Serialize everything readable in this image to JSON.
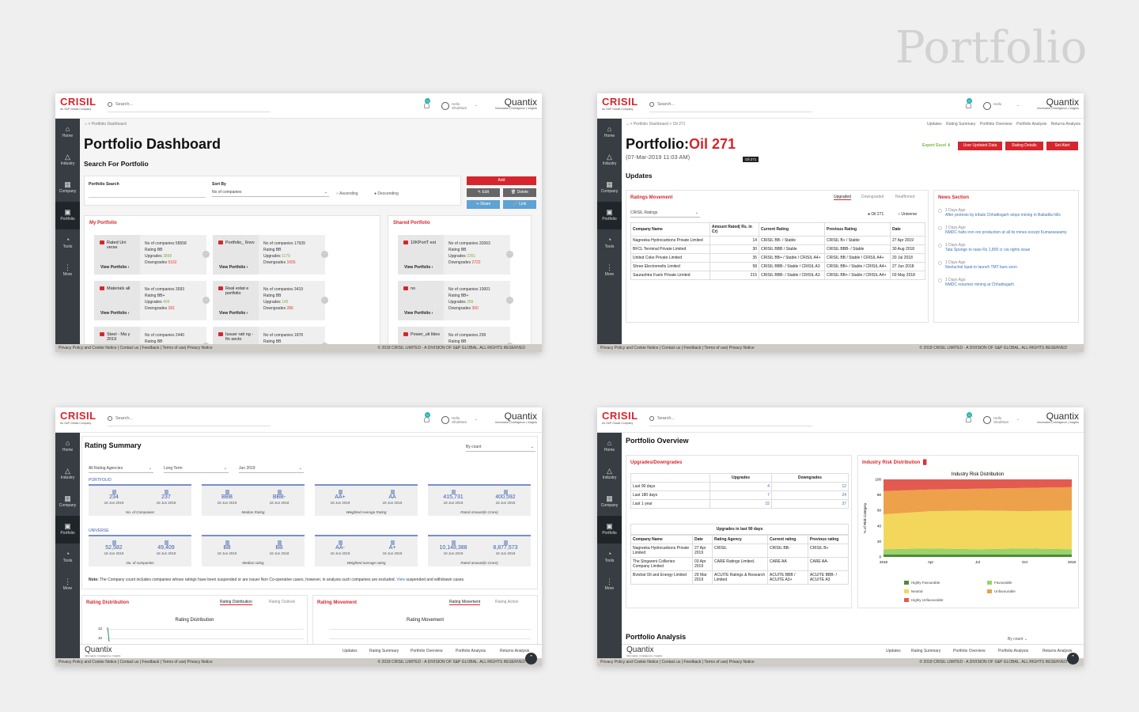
{
  "page_title": "Portfolio",
  "common": {
    "logo": "CRISIL",
    "logo_sub": "An S&P Global Company",
    "search_placeholder": "Search...",
    "notif_count": "0",
    "hello": "Hello",
    "user": "Shubham",
    "quantix": "Quantix",
    "quantix_sub": "Information | Intelligence | Insights",
    "sidebar": [
      "Home",
      "Industry",
      "Company",
      "Portfolio",
      "Tools",
      "More"
    ],
    "footer_left": "Privacy Policy and Cookie Notice | Contact us | Feedback | Terms of use| Privacy Notice",
    "footer_right": "© 2018 CRISIL LIMITED - A DIVISION OF S&P GLOBAL. ALL RIGHTS RESERVED",
    "top_links": [
      "Updates",
      "Rating Summary",
      "Portfolio Overview",
      "Portfolio Analysis",
      "Returns Analysis"
    ]
  },
  "s1": {
    "breadcrumb": "⌂ > Portfolio Dashboard",
    "title": "Portfolio Dashboard",
    "subtitle": "Search For Portfolio",
    "search_label": "Portfolio Search",
    "sort_label": "Sort By",
    "sort_value": "No of companies",
    "asc": "Ascending",
    "desc": "Descending",
    "add": "Add",
    "edit": "✎ Edit",
    "delete": "🗑 Delete",
    "share": "↪ Share",
    "link": "🔗 Link",
    "my_portfolio": "My Portfolio",
    "shared_portfolio": "Shared Portfolio",
    "view": "View Portfolio  ›",
    "my_cards": [
      {
        "name": "Rated Uni verse",
        "count": "No of companies 58558",
        "rating": "Rating BB",
        "up": "3858",
        "down": "5162"
      },
      {
        "name": "Portfolio_ 6nov",
        "count": "No of companies 17939",
        "rating": "Rating BB",
        "up": "1179",
        "down": "1655"
      },
      {
        "name": "Materials all",
        "count": "No of companies 3593",
        "rating": "Rating BB+",
        "up": "404",
        "down": "281"
      },
      {
        "name": "Real estat e portfolio",
        "count": "No of companies 3419",
        "rating": "Rating BB",
        "up": "145",
        "down": "286"
      },
      {
        "name": "Steel - Ma y 2019",
        "count": "No of companies 2440",
        "rating": "Rating BB",
        "up": "",
        "down": ""
      },
      {
        "name": "Issuer rati ng - fin secto",
        "count": "No of companies 1878",
        "rating": "Rating BB",
        "up": "",
        "down": ""
      }
    ],
    "shared_cards": [
      {
        "name": "10KPortT est",
        "count": "No of companies 32063",
        "rating": "Rating BB",
        "up": "2351",
        "down": "2722"
      },
      {
        "name": "no",
        "count": "No of companies 10001",
        "rating": "Rating BB+",
        "up": "289",
        "down": "360"
      },
      {
        "name": "Power_uti lities",
        "count": "No of companies 299",
        "rating": "Rating BB",
        "up": "",
        "down": ""
      }
    ],
    "upgrades_label": "Upgrades",
    "downgrades_label": "Downgrades"
  },
  "s2": {
    "breadcrumb": "⌂ > Portfolio Dashboard > Oil 271",
    "title_a": "Portfolio:",
    "title_b": "Oil 271",
    "date": "(07-Mar-2019 11:03 AM)",
    "tooltip": "Oil 271",
    "export": "Export Excel ⬇",
    "btn_user": "User Updated Data",
    "btn_detail": "Rating Details",
    "btn_alert": "Set Alert",
    "updates": "Updates",
    "ratings_movement": "Ratings Movement",
    "tabs": [
      "Upgraded",
      "Downgraded",
      "Reaffirmed"
    ],
    "filter": "CRISIL Ratings",
    "radio_a": "Oil 271",
    "radio_b": "Universe",
    "cols": [
      "Company Name",
      "Amount Rated( Rs. in Cr)",
      "Current Rating",
      "Previous Rating",
      "Date"
    ],
    "rows": [
      [
        "Nagreeka Hydrocarbons Private Limited",
        "14",
        "CRISIL BB- / Stable",
        "CRISIL B+ / Stable",
        "27 Apr 2019"
      ],
      [
        "BFCL Terminal Private Limited",
        "30",
        "CRISIL BBB / Stable",
        "CRISIL BBB- / Stable",
        "30 Aug 2018"
      ],
      [
        "United Coke Private Limited",
        "35",
        "CRISIL BB+ / Stable / CRISIL A4+",
        "CRISIL BB / Stable / CRISIL A4+",
        "20 Jul 2018"
      ],
      [
        "Shree Electromelts Limited",
        "58",
        "CRISIL BBB- / Stable / CRISIL A3",
        "CRISIL BB+ / Stable / CRISIL A4+",
        "27 Jun 2018"
      ],
      [
        "Saurashtra Fuels Private Limited",
        "215",
        "CRISIL BBB- / Stable / CRISIL A3",
        "CRISIL BB+ / Stable / CRISIL A4+",
        "03 May 2018"
      ]
    ],
    "news_title": "News Section",
    "news": [
      {
        "d": "1 Days Ago",
        "t": "After protests by tribals Chhattisgarh stops mining in Bailadila hills"
      },
      {
        "d": "1 Days Ago",
        "t": "NMDC halts iron ore production at all its mines except Kumaraswamy"
      },
      {
        "d": "1 Days Ago",
        "t": "Tata Sponge to raise Rs 1,800 cr via rights issue"
      },
      {
        "d": "1 Days Ago",
        "t": "Neelachal Ispat to launch TMT bars soon"
      },
      {
        "d": "1 Days Ago",
        "t": "NMDC resumes mining at Chhattisgarh"
      }
    ]
  },
  "s3": {
    "title": "Rating Summary",
    "by_count": "By count",
    "agency": "All Rating Agencies",
    "term": "Long Term",
    "month": "Jun 2019",
    "portfolio": "PORTFOLIO",
    "universe": "UNIVERSE",
    "p_cards": [
      {
        "a": "234",
        "b": "237",
        "da": "18 Jun 2019",
        "db": "18 Jun 2018",
        "lab": "No. of Companies"
      },
      {
        "a": "BBB",
        "b": "BBB-",
        "da": "18 Jun 2019",
        "db": "18 Jun 2018",
        "lab": "Median Rating"
      },
      {
        "a": "AA+",
        "b": "AA",
        "da": "18 Jun 2019",
        "db": "18 Jun 2018",
        "lab": "Weighted Average Rating"
      },
      {
        "a": "415,731",
        "b": "400,592",
        "da": "18 Jun 2019",
        "db": "18 Jun 2018",
        "lab": "Rated Amount(in Crore)"
      }
    ],
    "u_cards": [
      {
        "a": "52,582",
        "b": "49,409",
        "da": "18 Jun 2019",
        "db": "18 Jun 2018",
        "lab": "No. of companies"
      },
      {
        "a": "BB",
        "b": "BB",
        "da": "18 Jun 2019",
        "db": "18 Jun 2018",
        "lab": "Median rating"
      },
      {
        "a": "AA-",
        "b": "A+",
        "da": "18 Jun 2019",
        "db": "18 Jun 2018",
        "lab": "Weighted average rating"
      },
      {
        "a": "10,148,388",
        "b": "8,877,573",
        "da": "18 Jun 2019",
        "db": "18 Jun 2018",
        "lab": "Rated amount(in Crore)"
      }
    ],
    "note_b": "Note:",
    "note": " The Company count includes companies whose ratings have been suspended or are issuer Non Co-operative cases, however, in analysis such companies are excluded.",
    "note_link": "View",
    "note_end": " suspended and withdrawn cases.",
    "rd": "Rating Distribution",
    "rd_tabs": [
      "Rating Distribution",
      "Rating Outlook"
    ],
    "rd_chart": "Rating Distribution",
    "rm": "Rating Movement",
    "rm_tabs": [
      "Rating Movement",
      "Rating Action"
    ],
    "rm_chart": "Rating Movement",
    "y12": "12",
    "y10": "10"
  },
  "s4": {
    "title": "Portfolio Overview",
    "ud": "Upgrades/Downgrades",
    "ird": "Industry Risk Distribution",
    "ud_cols": [
      "",
      "Upgrades",
      "Downgrades"
    ],
    "ud_rows": [
      [
        "Last 90 days",
        "4",
        "12"
      ],
      [
        "Last 180 days",
        "7",
        "24"
      ],
      [
        "Last 1 year",
        "15",
        "37"
      ]
    ],
    "up90": "Upgrades in last 90 days",
    "up_cols": [
      "Company Name",
      "Date",
      "Rating Agency",
      "Current rating",
      "Previous rating"
    ],
    "up_rows": [
      [
        "Nagreeka Hydrocarbons Private Limited",
        "27 Apr 2019",
        "CRISIL",
        "CRISIL BB-",
        "CRISIL B+"
      ],
      [
        "The Singareni Collieries Company Limited",
        "03 Apr 2019",
        "CARE Ratings Limited.",
        "CARE AA",
        "CARE AA-"
      ],
      [
        "Bvishal Oil and Energy Limited",
        "29 Mar 2019",
        "ACUITE Ratings & Research Limited",
        "ACUITE BBB / ACUITE A3+",
        "ACUITE BBB- / ACUITE A3"
      ]
    ],
    "chart_title": "Industry Risk Distribution",
    "ylabel": "% of Risk Category",
    "pa": "Portfolio Analysis",
    "by_count": "By count",
    "legend": [
      {
        "n": "Highly Favourable",
        "c": "#4f8a3c"
      },
      {
        "n": "Favourable",
        "c": "#9ad36a"
      },
      {
        "n": "Neutral",
        "c": "#f2d75c"
      },
      {
        "n": "Unfavourable",
        "c": "#eca14a"
      },
      {
        "n": "Highly Unfavourable",
        "c": "#e35a50"
      }
    ]
  },
  "chart_data": [
    {
      "type": "area",
      "title": "Industry Risk Distribution",
      "ylabel": "% of Risk Category",
      "xlabel": "",
      "x": [
        "2018",
        "Apr",
        "Jul",
        "Oct",
        "2019"
      ],
      "ylim": [
        0,
        100
      ],
      "yticks": [
        0,
        20,
        40,
        60,
        80,
        100
      ],
      "series": [
        {
          "name": "Highly Favourable",
          "values": [
            3,
            3,
            3,
            3,
            3
          ]
        },
        {
          "name": "Favourable",
          "values": [
            7,
            8,
            7,
            8,
            7
          ]
        },
        {
          "name": "Neutral",
          "values": [
            45,
            48,
            50,
            48,
            50
          ]
        },
        {
          "name": "Unfavourable",
          "values": [
            30,
            28,
            28,
            30,
            30
          ]
        },
        {
          "name": "Highly Unfavourable",
          "values": [
            15,
            13,
            12,
            11,
            10
          ]
        }
      ]
    }
  ]
}
